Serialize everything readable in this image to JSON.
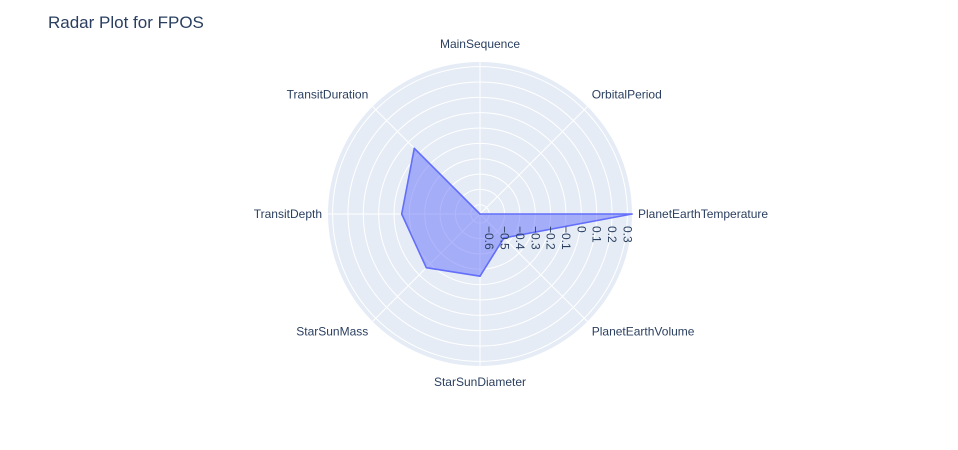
{
  "chart_data": {
    "type": "radar",
    "title": "Radar Plot for FPOS",
    "categories": [
      "PlanetEarthTemperature",
      "OrbitalPeriod",
      "MainSequence",
      "TransitDuration",
      "TransitDepth",
      "StarSunMass",
      "StarSunDiameter",
      "PlanetEarthVolume"
    ],
    "series": [
      {
        "values": [
          0.33,
          -0.66,
          -0.66,
          -0.055,
          -0.15,
          -0.165,
          -0.255,
          -0.44
        ],
        "closed": true
      }
    ],
    "radial_range": [
      -0.66,
      0.33
    ],
    "radial_ticks": [
      -0.6,
      -0.5,
      -0.4,
      -0.3,
      -0.2,
      -0.1,
      0,
      0.1,
      0.2,
      0.3
    ],
    "radial_tick_labels": [
      "−0.6",
      "−0.5",
      "−0.4",
      "−0.3",
      "−0.2",
      "−0.1",
      "0",
      "0.1",
      "0.2",
      "0.3"
    ],
    "grid": true,
    "legend": "none",
    "colors": {
      "fill": "rgba(99,110,250,0.5)",
      "line": "#636efa",
      "bg": "#e5ecf6",
      "grid": "#ffffff",
      "text": "#2a3f5f"
    }
  }
}
